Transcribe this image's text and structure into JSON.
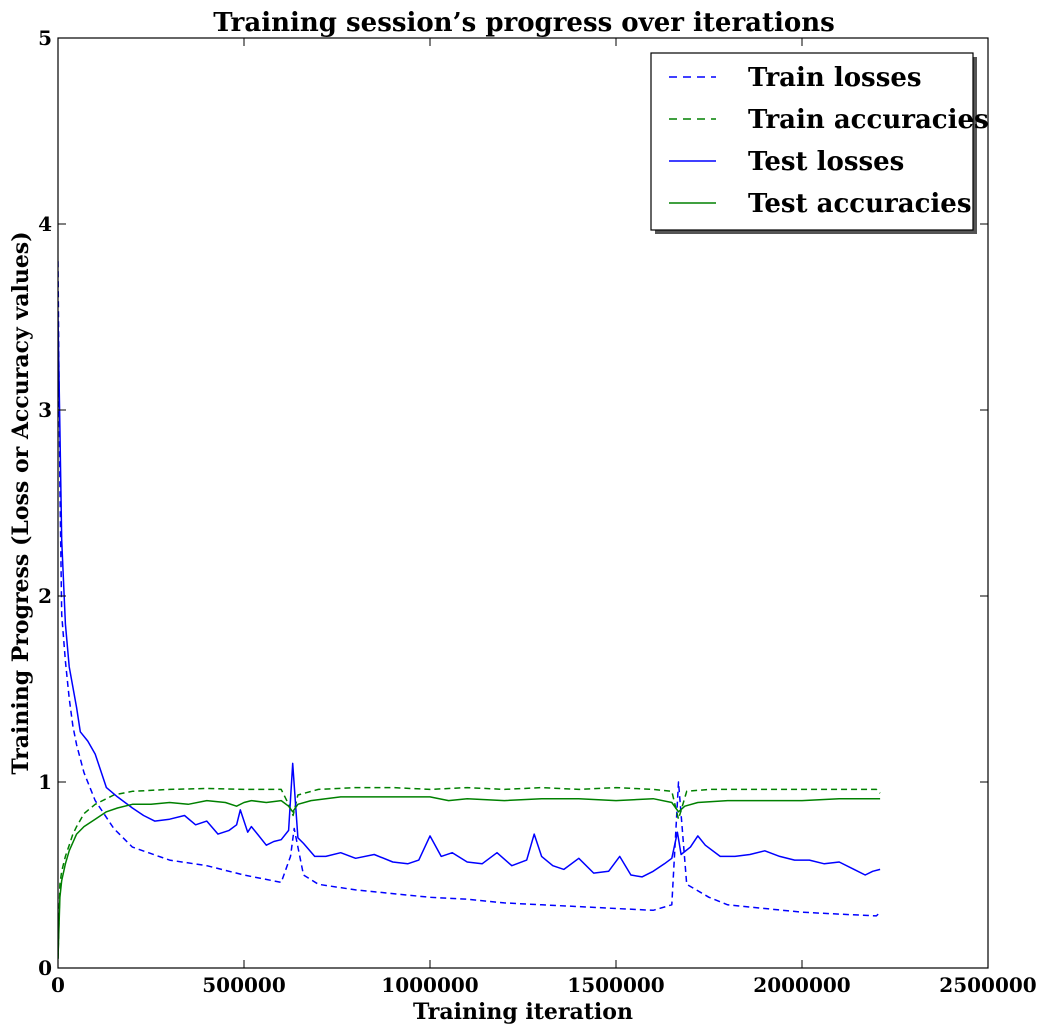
{
  "chart_data": {
    "type": "line",
    "title": "Training session’s progress over iterations",
    "xlabel": "Training iteration",
    "ylabel": "Training Progress (Loss or Accuracy values)",
    "xlim": [
      0,
      2500000
    ],
    "ylim": [
      0,
      5
    ],
    "xticks": [
      "0",
      "500000",
      "1000000",
      "1500000",
      "2000000",
      "2500000"
    ],
    "yticks": [
      "0",
      "1",
      "2",
      "3",
      "4",
      "5"
    ],
    "grid": false,
    "legend_position": "top-right",
    "series": [
      {
        "name": "Train losses",
        "style": "dashed",
        "color": "#0000ff",
        "x": [
          0,
          5000,
          10000,
          20000,
          30000,
          40000,
          50000,
          70000,
          100000,
          150000,
          200000,
          300000,
          400000,
          500000,
          600000,
          625000,
          635000,
          660000,
          700000,
          800000,
          900000,
          1000000,
          1100000,
          1200000,
          1300000,
          1400000,
          1500000,
          1600000,
          1650000,
          1668000,
          1690000,
          1750000,
          1800000,
          1900000,
          2000000,
          2100000,
          2200000,
          2210000
        ],
        "y": [
          3.8,
          2.6,
          1.9,
          1.65,
          1.45,
          1.3,
          1.2,
          1.05,
          0.9,
          0.75,
          0.65,
          0.58,
          0.55,
          0.5,
          0.46,
          0.6,
          0.75,
          0.5,
          0.45,
          0.42,
          0.4,
          0.38,
          0.37,
          0.35,
          0.34,
          0.33,
          0.32,
          0.31,
          0.34,
          1.0,
          0.45,
          0.38,
          0.34,
          0.32,
          0.3,
          0.29,
          0.28,
          0.3
        ]
      },
      {
        "name": "Train accuracies",
        "style": "dashed",
        "color": "#008000",
        "x": [
          0,
          5000,
          10000,
          20000,
          30000,
          40000,
          50000,
          70000,
          100000,
          150000,
          200000,
          300000,
          400000,
          500000,
          600000,
          620000,
          632000,
          645000,
          700000,
          800000,
          900000,
          1000000,
          1100000,
          1200000,
          1300000,
          1400000,
          1500000,
          1600000,
          1650000,
          1668000,
          1690000,
          1750000,
          1800000,
          1900000,
          2000000,
          2100000,
          2200000,
          2210000
        ],
        "y": [
          0.05,
          0.45,
          0.52,
          0.6,
          0.66,
          0.72,
          0.76,
          0.83,
          0.88,
          0.93,
          0.95,
          0.96,
          0.965,
          0.96,
          0.96,
          0.88,
          0.82,
          0.93,
          0.96,
          0.97,
          0.97,
          0.96,
          0.97,
          0.96,
          0.97,
          0.96,
          0.97,
          0.96,
          0.95,
          0.8,
          0.95,
          0.96,
          0.96,
          0.96,
          0.96,
          0.96,
          0.96,
          0.94
        ]
      },
      {
        "name": "Test losses",
        "style": "solid",
        "color": "#0000ff",
        "x": [
          0,
          5000,
          10000,
          20000,
          30000,
          50000,
          60000,
          80000,
          100000,
          130000,
          160000,
          200000,
          230000,
          260000,
          300000,
          340000,
          370000,
          400000,
          430000,
          460000,
          480000,
          490000,
          510000,
          520000,
          540000,
          560000,
          580000,
          600000,
          620000,
          631000,
          645000,
          660000,
          690000,
          720000,
          760000,
          800000,
          850000,
          900000,
          940000,
          970000,
          1000000,
          1030000,
          1060000,
          1100000,
          1140000,
          1180000,
          1220000,
          1260000,
          1280000,
          1300000,
          1330000,
          1360000,
          1400000,
          1440000,
          1480000,
          1510000,
          1540000,
          1570000,
          1600000,
          1630000,
          1650000,
          1665000,
          1675000,
          1700000,
          1720000,
          1740000,
          1780000,
          1820000,
          1860000,
          1900000,
          1940000,
          1980000,
          2020000,
          2060000,
          2100000,
          2140000,
          2170000,
          2190000,
          2210000
        ],
        "y": [
          3.5,
          2.9,
          2.3,
          1.85,
          1.62,
          1.4,
          1.27,
          1.22,
          1.15,
          0.97,
          0.92,
          0.86,
          0.82,
          0.79,
          0.8,
          0.82,
          0.77,
          0.79,
          0.72,
          0.74,
          0.77,
          0.85,
          0.73,
          0.76,
          0.71,
          0.66,
          0.68,
          0.69,
          0.74,
          1.1,
          0.7,
          0.67,
          0.6,
          0.6,
          0.62,
          0.59,
          0.61,
          0.57,
          0.56,
          0.58,
          0.71,
          0.6,
          0.62,
          0.57,
          0.56,
          0.62,
          0.55,
          0.58,
          0.72,
          0.6,
          0.55,
          0.53,
          0.59,
          0.51,
          0.52,
          0.6,
          0.5,
          0.49,
          0.52,
          0.56,
          0.59,
          0.73,
          0.61,
          0.65,
          0.71,
          0.66,
          0.6,
          0.6,
          0.61,
          0.63,
          0.6,
          0.58,
          0.58,
          0.56,
          0.57,
          0.53,
          0.5,
          0.52,
          0.53
        ]
      },
      {
        "name": "Test accuracies",
        "style": "solid",
        "color": "#008000",
        "x": [
          0,
          5000,
          10000,
          20000,
          30000,
          50000,
          70000,
          100000,
          130000,
          160000,
          200000,
          250000,
          300000,
          350000,
          400000,
          450000,
          480000,
          500000,
          520000,
          560000,
          600000,
          620000,
          631000,
          645000,
          680000,
          720000,
          760000,
          800000,
          900000,
          1000000,
          1050000,
          1100000,
          1200000,
          1300000,
          1400000,
          1500000,
          1600000,
          1650000,
          1668000,
          1685000,
          1720000,
          1800000,
          1900000,
          2000000,
          2100000,
          2200000,
          2210000
        ],
        "y": [
          0.05,
          0.38,
          0.47,
          0.56,
          0.63,
          0.72,
          0.76,
          0.8,
          0.84,
          0.86,
          0.88,
          0.88,
          0.89,
          0.88,
          0.9,
          0.89,
          0.87,
          0.89,
          0.9,
          0.89,
          0.9,
          0.87,
          0.84,
          0.88,
          0.9,
          0.91,
          0.92,
          0.92,
          0.92,
          0.92,
          0.9,
          0.91,
          0.9,
          0.91,
          0.91,
          0.9,
          0.91,
          0.89,
          0.84,
          0.87,
          0.89,
          0.9,
          0.9,
          0.9,
          0.91,
          0.91,
          0.91
        ]
      }
    ]
  }
}
